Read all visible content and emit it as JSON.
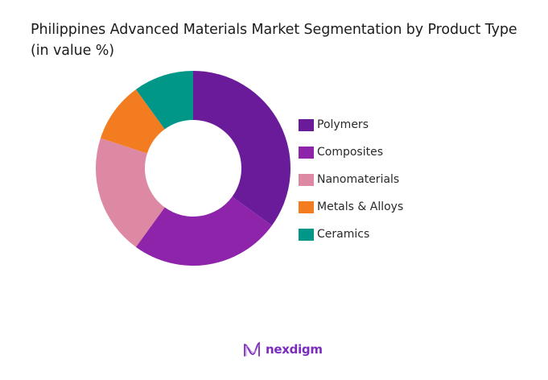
{
  "chart_data": {
    "type": "pie",
    "subtype": "donut",
    "title": "Philippines Advanced Materials Market Segmentation by Product Type (in value %)",
    "categories": [
      "Polymers",
      "Composites",
      "Nanomaterials",
      "Metals & Alloys",
      "Ceramics"
    ],
    "values": [
      35,
      25,
      20,
      10,
      10
    ],
    "colors": [
      "#6a1b9a",
      "#8e24aa",
      "#de89a3",
      "#f47c20",
      "#009688"
    ],
    "unit": "%",
    "legend_position": "right",
    "start_angle_deg": 0,
    "direction": "clockwise"
  },
  "title": "Philippines Advanced Materials Market Segmentation by Product Type (in value %)",
  "legend": [
    {
      "label": "Polymers",
      "color": "#6a1b9a"
    },
    {
      "label": "Composites",
      "color": "#8e24aa"
    },
    {
      "label": "Nanomaterials",
      "color": "#de89a3"
    },
    {
      "label": "Metals & Alloys",
      "color": "#f47c20"
    },
    {
      "label": "Ceramics",
      "color": "#009688"
    }
  ],
  "branding": {
    "logo_text": "nexdigm",
    "logo_icon": "nexdigm-wave-icon",
    "logo_color": "#7b2cbf"
  }
}
